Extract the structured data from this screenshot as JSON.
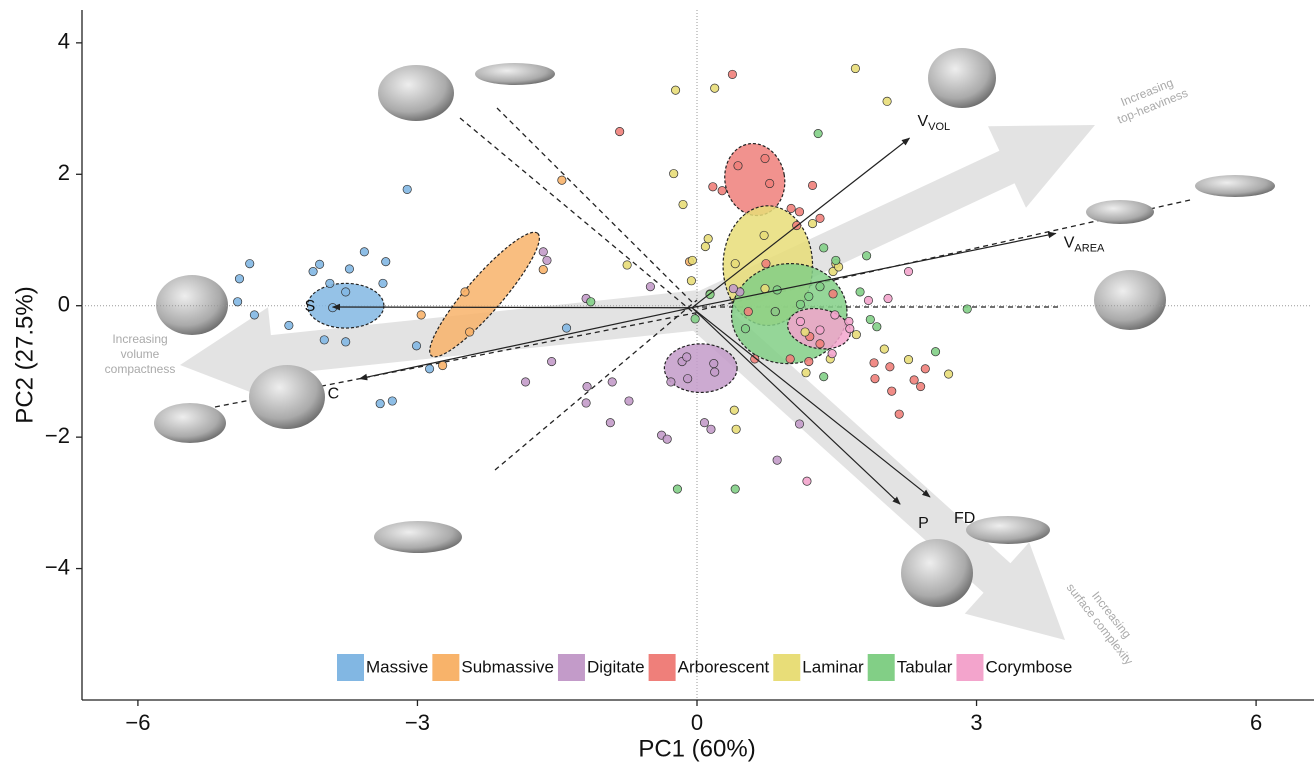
{
  "chart_data": {
    "type": "biplot",
    "x_label": "PC1 (60%)",
    "y_label": "PC2 (27.5%)",
    "xlim": [
      -6.6,
      6.6
    ],
    "ylim": [
      -6,
      4.5
    ],
    "xticks": [
      {
        "value": -6,
        "label": "−6"
      },
      {
        "value": -3,
        "label": "−3"
      },
      0,
      3,
      6
    ],
    "yticks": [
      {
        "value": -4,
        "label": "−4"
      },
      {
        "value": -2,
        "label": "−2"
      },
      0,
      2,
      4
    ],
    "zero_lines": true,
    "series": [
      {
        "name": "Massive",
        "color": "#82b7e3",
        "x": [
          -4.91,
          -4.8,
          -4.93,
          -4.75,
          -4.38,
          -4.12,
          -4.05,
          -3.94,
          -3.73,
          -3.57,
          -3.34,
          -3.37,
          -4.0,
          -3.77,
          -3.11,
          -2.87,
          -3.4,
          -3.27,
          -3.77,
          -3.91,
          -1.4,
          -3.01
        ],
        "y": [
          0.41,
          0.64,
          0.06,
          -0.14,
          -0.3,
          0.52,
          0.63,
          0.34,
          0.56,
          0.82,
          0.67,
          0.34,
          -0.52,
          -0.55,
          1.77,
          -0.96,
          -1.49,
          -1.45,
          0.21,
          -0.03,
          -0.34,
          -0.61
        ],
        "ellipse": {
          "cx": -3.77,
          "cy": 0,
          "rx": 0.41,
          "ry": 0.34,
          "angle": 0
        }
      },
      {
        "name": "Submassive",
        "color": "#f8b36a",
        "x": [
          -1.45,
          -1.65,
          -2.49,
          -2.96,
          -2.44,
          -2.73,
          -0.08
        ],
        "y": [
          1.91,
          0.55,
          0.21,
          -0.14,
          -0.4,
          -0.91,
          0.67
        ],
        "ellipse": {
          "cx": -2.28,
          "cy": 0.17,
          "rx": 0.87,
          "ry": 0.27,
          "angle": -49
        }
      },
      {
        "name": "Digitate",
        "color": "#c39bc9",
        "x": [
          -1.65,
          -1.61,
          -1.19,
          -0.5,
          -0.16,
          -0.11,
          0.18,
          -0.1,
          -0.28,
          -1.56,
          -1.84,
          -0.91,
          -1.18,
          -0.73,
          -1.19,
          -0.93,
          -0.38,
          -0.32,
          0.08,
          0.15,
          0.19,
          0.46,
          0.39,
          0.86,
          1.1
        ],
        "y": [
          0.82,
          0.69,
          0.11,
          0.29,
          -0.85,
          -0.78,
          -0.88,
          -1.11,
          -1.16,
          -0.85,
          -1.16,
          -1.16,
          -1.23,
          -1.45,
          -1.48,
          -1.78,
          -1.97,
          -2.03,
          -1.78,
          -1.88,
          -1.01,
          0.21,
          0.26,
          -2.35,
          -1.8
        ],
        "ellipse": {
          "cx": 0.04,
          "cy": -0.95,
          "rx": 0.39,
          "ry": 0.37,
          "angle": 0
        }
      },
      {
        "name": "Arborescent",
        "color": "#ef7f7a",
        "x": [
          -0.83,
          0.38,
          0.17,
          0.27,
          0.44,
          0.73,
          0.78,
          1.01,
          1.1,
          1.24,
          1.32,
          1.07,
          0.55,
          0.84,
          1.21,
          1.0,
          0.62,
          1.2,
          1.9,
          1.91,
          2.07,
          2.09,
          2.33,
          2.45,
          2.4,
          2.17,
          0.74,
          1.46,
          1.32
        ],
        "y": [
          2.65,
          3.52,
          1.81,
          1.75,
          2.13,
          2.24,
          1.86,
          1.48,
          1.43,
          1.83,
          1.33,
          1.22,
          -0.09,
          -0.09,
          -0.47,
          -0.81,
          -0.81,
          -0.85,
          -0.87,
          -1.11,
          -0.93,
          -1.3,
          -1.13,
          -0.96,
          -1.23,
          -1.65,
          0.64,
          0.18,
          -0.58
        ],
        "ellipse": {
          "cx": 0.62,
          "cy": 1.92,
          "rx": 0.32,
          "ry": 0.55,
          "angle": -10
        }
      },
      {
        "name": "Laminar",
        "color": "#e8dd78",
        "x": [
          -0.23,
          0.19,
          1.7,
          2.04,
          -0.25,
          -0.15,
          0.12,
          0.09,
          -0.05,
          -0.06,
          -0.75,
          0.14,
          0.41,
          0.72,
          1.24,
          1.49,
          1.46,
          1.52,
          0.73,
          1.16,
          1.43,
          2.01,
          1.71,
          2.27,
          2.7,
          0.4,
          0.42,
          1.17
        ],
        "y": [
          3.28,
          3.31,
          3.61,
          3.11,
          2.01,
          1.54,
          1.02,
          0.9,
          0.69,
          0.38,
          0.62,
          0.18,
          0.64,
          1.07,
          1.25,
          0.64,
          0.52,
          0.59,
          0.26,
          -0.4,
          -0.81,
          -0.66,
          -0.44,
          -0.82,
          -1.04,
          -1.59,
          -1.88,
          -1.02
        ],
        "ellipse": {
          "cx": 0.76,
          "cy": 0.61,
          "rx": 0.48,
          "ry": 0.91,
          "angle": 0
        }
      },
      {
        "name": "Tabular",
        "color": "#82cf86",
        "x": [
          -1.14,
          -0.02,
          0.14,
          1.3,
          1.36,
          1.49,
          1.82,
          1.86,
          1.93,
          1.75,
          1.32,
          0.86,
          0.84,
          1.11,
          1.2,
          2.9,
          2.56,
          1.36,
          -0.21,
          0.41,
          0.52
        ],
        "y": [
          0.06,
          -0.2,
          0.17,
          2.62,
          0.88,
          0.69,
          0.76,
          -0.21,
          -0.32,
          0.21,
          0.29,
          0.24,
          -0.09,
          0.02,
          0.14,
          -0.05,
          -0.7,
          -1.08,
          -2.79,
          -2.79,
          -0.35
        ],
        "ellipse": {
          "cx": 0.99,
          "cy": -0.12,
          "rx": 0.62,
          "ry": 0.76,
          "angle": -5
        }
      },
      {
        "name": "Corymbose",
        "color": "#f3a4cc",
        "x": [
          1.84,
          2.05,
          2.27,
          1.63,
          1.11,
          1.32,
          1.45,
          1.18,
          1.48,
          1.64
        ],
        "y": [
          0.08,
          0.11,
          0.52,
          -0.24,
          -0.24,
          -0.37,
          -0.73,
          -2.67,
          -0.14,
          -0.35
        ],
        "ellipse": {
          "cx": 1.31,
          "cy": -0.35,
          "rx": 0.34,
          "ry": 0.3,
          "angle": 10
        }
      }
    ],
    "loadings": [
      {
        "label": "V",
        "subscript": "VOL",
        "x": 2.28,
        "y": 2.55
      },
      {
        "label": "V",
        "subscript": "AREA",
        "x": 3.85,
        "y": 1.1
      },
      {
        "label": "S",
        "x": -3.91,
        "y": -0.02
      },
      {
        "label": "C",
        "x": -3.62,
        "y": -1.11
      },
      {
        "label": "P",
        "x": 2.18,
        "y": -3.02
      },
      {
        "label": "FD",
        "x": 2.5,
        "y": -2.91
      }
    ],
    "annotations": [
      [
        "Increasing",
        "top-heaviness"
      ],
      [
        "Increasing",
        "volume",
        "compactness"
      ],
      [
        "Increasing",
        "surface complexity"
      ]
    ]
  }
}
